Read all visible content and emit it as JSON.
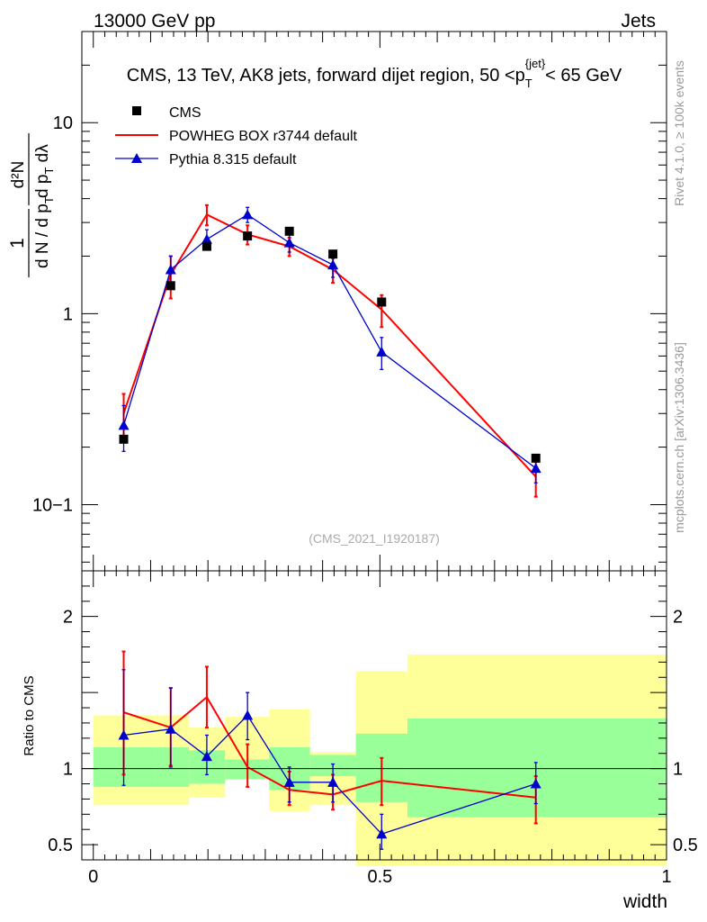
{
  "header": {
    "left": "13000 GeV pp",
    "right": "Jets"
  },
  "side_texts": {
    "rivet": "Rivet 4.1.0, ≥ 100k events",
    "mcplots": "mcplots.cern.ch [arXiv:1306.3436]"
  },
  "colors": {
    "cms": "#000000",
    "powheg": "#ff0000",
    "pythia": "#0000cc",
    "band_inner": "#99ff99",
    "band_outer": "#ffff99"
  },
  "chart_data": [
    {
      "type": "line",
      "title": "CMS, 13 TeV, AK8 jets, forward dijet region, 50 <p_T^{jet}< 65 GeV",
      "title_parts": {
        "pre": "CMS, 13 TeV, AK8 jets, forward dijet region, 50 <p",
        "sub": "T",
        "sup": "{jet}",
        "post": "< 65 GeV"
      },
      "ylabel": "1/(dN/dp_T) d²N/(dp_T dλ)",
      "ylabel_parts": {
        "num": "1",
        "den": "d N / d p",
        "den_sub": "T",
        "rnum": "d²N",
        "rden": "d p",
        "rden_sub": "T",
        "rden_tail": " dλ"
      },
      "yscale": "log",
      "ylim": [
        0.045,
        30
      ],
      "xlim": [
        -0.02,
        1.0
      ],
      "yticks": [
        {
          "value": 0.1,
          "label": "10−1"
        },
        {
          "value": 1,
          "label": "1"
        },
        {
          "value": 10,
          "label": "10"
        }
      ],
      "watermark": "(CMS_2021_I1920187)",
      "legend": [
        "CMS",
        "POWHEG BOX r3744 default",
        "Pythia 8.315 default"
      ],
      "series": [
        {
          "name": "CMS",
          "marker": "square",
          "x": [
            0.053,
            0.135,
            0.198,
            0.269,
            0.342,
            0.418,
            0.503,
            0.772
          ],
          "y": [
            0.22,
            1.4,
            2.25,
            2.55,
            2.7,
            2.05,
            1.15,
            0.175
          ]
        },
        {
          "name": "POWHEG BOX r3744 default",
          "marker": "none",
          "x": [
            0.053,
            0.135,
            0.198,
            0.269,
            0.342,
            0.418,
            0.503,
            0.772
          ],
          "y": [
            0.3,
            1.6,
            3.3,
            2.6,
            2.25,
            1.7,
            1.05,
            0.14
          ],
          "err": [
            0.08,
            0.4,
            0.4,
            0.3,
            0.25,
            0.25,
            0.2,
            0.03
          ]
        },
        {
          "name": "Pythia 8.315 default",
          "marker": "triangle",
          "x": [
            0.053,
            0.135,
            0.198,
            0.269,
            0.342,
            0.418,
            0.503,
            0.772
          ],
          "y": [
            0.26,
            1.7,
            2.45,
            3.3,
            2.35,
            1.8,
            0.63,
            0.155
          ],
          "err": [
            0.07,
            0.3,
            0.3,
            0.3,
            0.25,
            0.25,
            0.12,
            0.025
          ]
        }
      ]
    },
    {
      "type": "line",
      "ylabel": "Ratio to CMS",
      "xlabel": "width",
      "ylim": [
        0.4,
        2.3
      ],
      "xlim": [
        -0.02,
        1.0
      ],
      "xticks": [
        {
          "value": 0,
          "label": "0"
        },
        {
          "value": 0.5,
          "label": "0.5"
        },
        {
          "value": 1,
          "label": "1"
        }
      ],
      "yticks": [
        {
          "value": 0.5,
          "label": "0.5"
        },
        {
          "value": 1,
          "label": "1"
        },
        {
          "value": 2,
          "label": "2"
        }
      ],
      "bands": {
        "edges": [
          0.0,
          0.107,
          0.167,
          0.23,
          0.307,
          0.378,
          0.458,
          0.548,
          1.0
        ],
        "inner_low": [
          0.88,
          0.88,
          0.9,
          0.93,
          0.86,
          0.95,
          0.78,
          0.68
        ],
        "inner_high": [
          1.14,
          1.14,
          1.12,
          1.06,
          1.14,
          1.09,
          1.23,
          1.33
        ],
        "outer_low": [
          0.76,
          0.76,
          0.81,
          0.93,
          0.72,
          0.76,
          0.36,
          0.36
        ],
        "outer_high": [
          1.35,
          1.35,
          1.27,
          1.34,
          1.39,
          1.11,
          1.64,
          1.75
        ]
      },
      "series": [
        {
          "name": "POWHEG BOX r3744 default",
          "x": [
            0.053,
            0.135,
            0.198,
            0.269,
            0.342,
            0.418,
            0.503,
            0.772
          ],
          "y": [
            1.37,
            1.27,
            1.47,
            1.01,
            0.86,
            0.83,
            0.92,
            0.81
          ],
          "err_lo": [
            0.41,
            0.25,
            0.2,
            0.13,
            0.1,
            0.1,
            0.16,
            0.17
          ],
          "err_hi": [
            0.4,
            0.26,
            0.2,
            0.15,
            0.12,
            0.13,
            0.15,
            0.14
          ]
        },
        {
          "name": "Pythia 8.315 default",
          "x": [
            0.053,
            0.135,
            0.198,
            0.269,
            0.342,
            0.418,
            0.503,
            0.772
          ],
          "y": [
            1.22,
            1.26,
            1.08,
            1.35,
            0.91,
            0.91,
            0.57,
            0.9
          ],
          "err_lo": [
            0.33,
            0.25,
            0.12,
            0.16,
            0.13,
            0.13,
            0.1,
            0.13
          ],
          "err_hi": [
            0.43,
            0.27,
            0.14,
            0.15,
            0.1,
            0.12,
            0.13,
            0.14
          ]
        }
      ]
    }
  ]
}
